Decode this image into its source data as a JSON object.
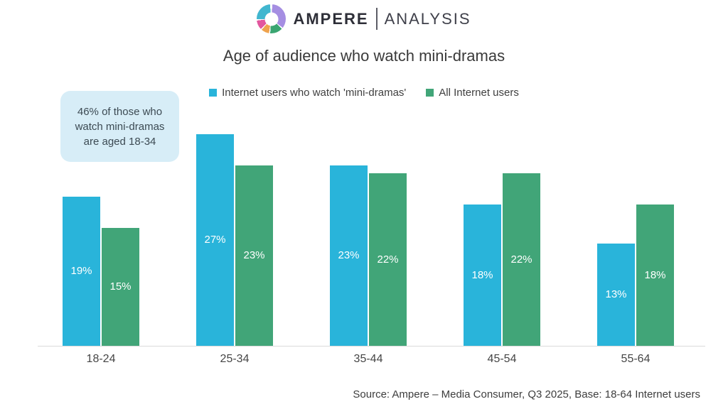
{
  "brand": {
    "name": "AMPERE",
    "sub": "ANALYSIS",
    "logo_segment_colors": {
      "purple": "#a58ee2",
      "green": "#3aa571",
      "orange": "#efa34d",
      "pink": "#e2569e",
      "teal": "#41b6cf"
    }
  },
  "title": "Age of audience who watch mini-dramas",
  "callout": "46% of those who watch mini-dramas are aged 18-34",
  "chart_data": {
    "type": "bar",
    "categories": [
      "18-24",
      "25-34",
      "35-44",
      "45-54",
      "55-64"
    ],
    "series": [
      {
        "name": "Internet users who watch 'mini-dramas'",
        "color": "#29b4da",
        "values": [
          19,
          27,
          23,
          18,
          13
        ]
      },
      {
        "name": "All Internet users",
        "color": "#41a578",
        "values": [
          15,
          23,
          22,
          22,
          18
        ]
      }
    ],
    "value_suffix": "%",
    "data_labels": "inside-center-white",
    "legend_position": "top-center",
    "grid": false,
    "y_axis_visible": false
  },
  "source": "Source: Ampere – Media Consumer, Q3 2025, Base: 18-64 Internet users"
}
